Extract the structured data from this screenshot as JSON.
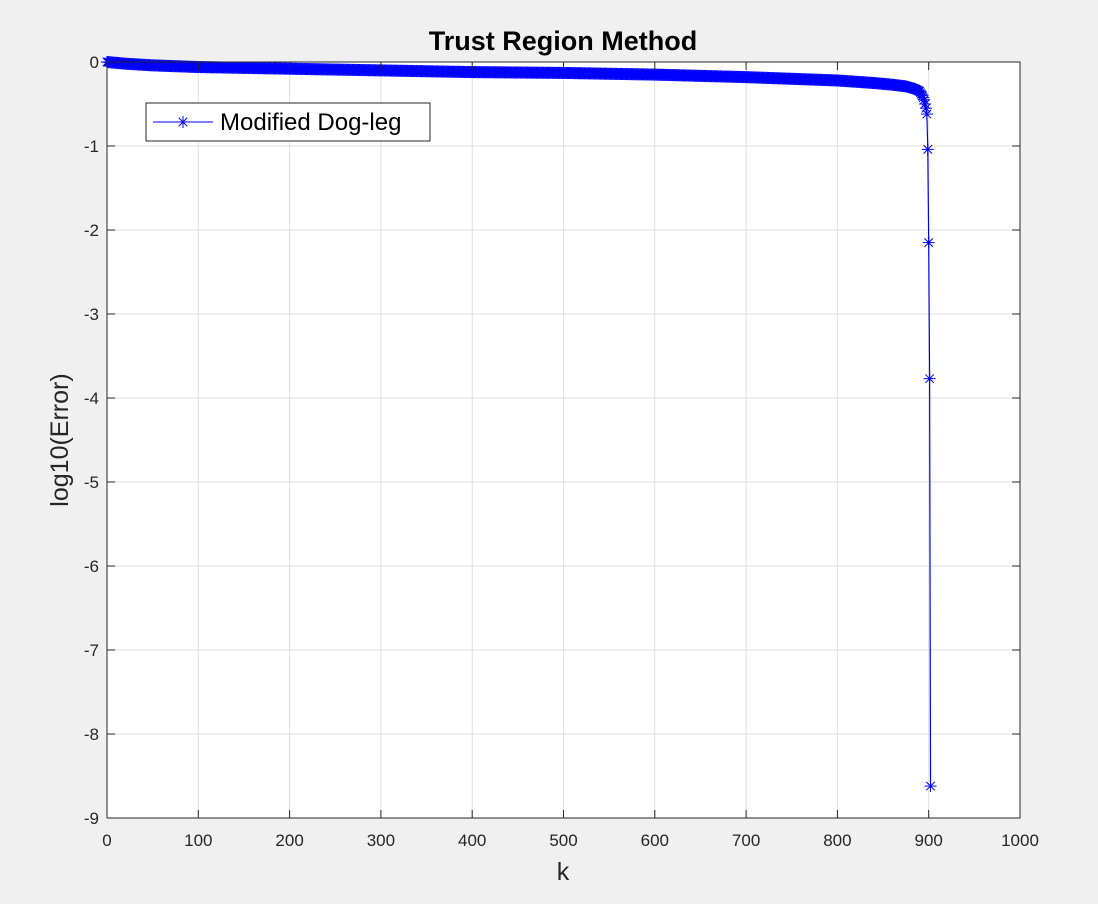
{
  "chart_data": {
    "type": "line",
    "title": "Trust Region Method",
    "xlabel": "k",
    "ylabel": "log10(Error)",
    "xlim": [
      0,
      1000
    ],
    "ylim": [
      -9,
      0
    ],
    "xticks": [
      0,
      100,
      200,
      300,
      400,
      500,
      600,
      700,
      800,
      900,
      1000
    ],
    "yticks": [
      0,
      -1,
      -2,
      -3,
      -4,
      -5,
      -6,
      -7,
      -8,
      -9
    ],
    "xtick_labels": [
      "0",
      "100",
      "200",
      "300",
      "400",
      "500",
      "600",
      "700",
      "800",
      "900",
      "1000"
    ],
    "ytick_labels": [
      "0",
      "-1",
      "-2",
      "-3",
      "-4",
      "-5",
      "-6",
      "-7",
      "-8",
      "-9"
    ],
    "grid": true,
    "legend_position": "top-left",
    "series": [
      {
        "name": "Modified Dog-leg",
        "color": "#0000ff",
        "marker": "asterisk",
        "points": [
          [
            0,
            0.0
          ],
          [
            20,
            -0.02
          ],
          [
            50,
            -0.04
          ],
          [
            100,
            -0.06
          ],
          [
            150,
            -0.07
          ],
          [
            200,
            -0.08
          ],
          [
            250,
            -0.09
          ],
          [
            300,
            -0.1
          ],
          [
            350,
            -0.11
          ],
          [
            400,
            -0.12
          ],
          [
            450,
            -0.125
          ],
          [
            500,
            -0.13
          ],
          [
            550,
            -0.14
          ],
          [
            600,
            -0.15
          ],
          [
            650,
            -0.165
          ],
          [
            700,
            -0.18
          ],
          [
            750,
            -0.2
          ],
          [
            800,
            -0.22
          ],
          [
            840,
            -0.25
          ],
          [
            860,
            -0.27
          ],
          [
            875,
            -0.29
          ],
          [
            885,
            -0.32
          ],
          [
            890,
            -0.35
          ],
          [
            893,
            -0.4
          ],
          [
            895,
            -0.45
          ],
          [
            896,
            -0.5
          ],
          [
            897,
            -0.55
          ],
          [
            898,
            -0.62
          ],
          [
            899,
            -1.04
          ],
          [
            900,
            -2.15
          ],
          [
            901,
            -3.77
          ],
          [
            902,
            -8.62
          ]
        ],
        "dense_until": 897
      }
    ]
  }
}
